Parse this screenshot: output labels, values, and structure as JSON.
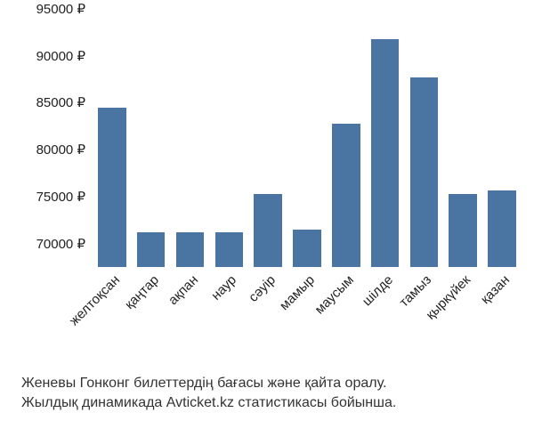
{
  "chart": {
    "type": "bar",
    "categories": [
      "желтоқсан",
      "қаңтар",
      "ақпан",
      "наур",
      "сәуір",
      "мамыр",
      "маусым",
      "шілде",
      "тамыз",
      "қыркүйек",
      "қазан"
    ],
    "values": [
      84500,
      71200,
      71200,
      71200,
      75300,
      71500,
      82800,
      91800,
      87700,
      75300,
      75700
    ],
    "bar_color": "#4a75a3",
    "bar_width": 0.72,
    "background_color": "#ffffff",
    "grid": false,
    "y_axis": {
      "min": 67500,
      "max": 95000,
      "tick_start": 70000,
      "tick_step": 5000,
      "suffix": " ₽"
    },
    "tick_fontsize": 15,
    "x_label_rotation_deg": 45
  },
  "caption": {
    "line1": "Женевы Гонконг билеттердің бағасы және қайта оралу.",
    "line2": "Жылдық динамикада Avticket.kz статистикасы бойынша."
  }
}
